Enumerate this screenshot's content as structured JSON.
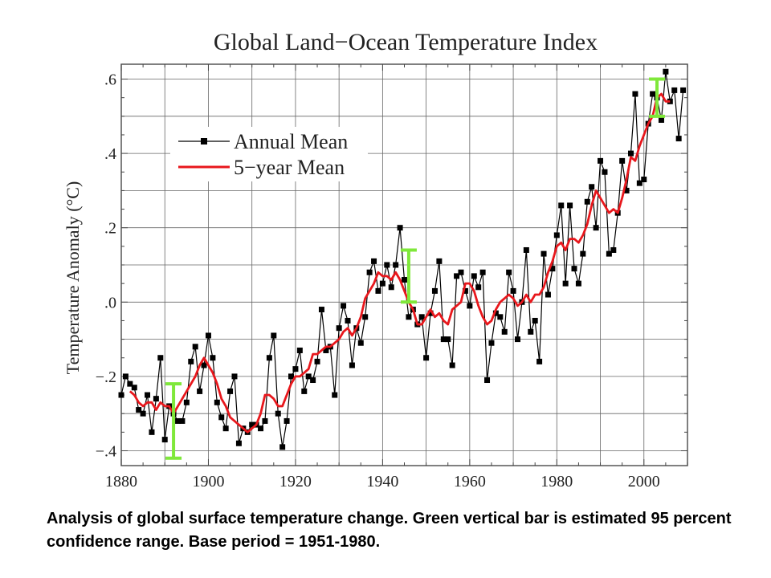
{
  "chart_data": {
    "type": "line",
    "title": "Global Land−Ocean Temperature Index",
    "ylabel": "Temperature Anomaly (°C)",
    "xlabel": "",
    "xlim": [
      1880,
      2010
    ],
    "ylim": [
      -0.44,
      0.64
    ],
    "x_ticks": [
      1880,
      1900,
      1920,
      1940,
      1960,
      1980,
      2000
    ],
    "x_tick_labels": [
      "1880",
      "1900",
      "1920",
      "1940",
      "1960",
      "1980",
      "2000"
    ],
    "y_ticks": [
      -0.4,
      -0.2,
      0.0,
      0.2,
      0.4,
      0.6
    ],
    "y_tick_labels": [
      "−.4",
      "−.2",
      ".0",
      ".2",
      ".4",
      ".6"
    ],
    "grid": true,
    "legend_position": "top-left",
    "x": [
      1880,
      1881,
      1882,
      1883,
      1884,
      1885,
      1886,
      1887,
      1888,
      1889,
      1890,
      1891,
      1892,
      1893,
      1894,
      1895,
      1896,
      1897,
      1898,
      1899,
      1900,
      1901,
      1902,
      1903,
      1904,
      1905,
      1906,
      1907,
      1908,
      1909,
      1910,
      1911,
      1912,
      1913,
      1914,
      1915,
      1916,
      1917,
      1918,
      1919,
      1920,
      1921,
      1922,
      1923,
      1924,
      1925,
      1926,
      1927,
      1928,
      1929,
      1930,
      1931,
      1932,
      1933,
      1934,
      1935,
      1936,
      1937,
      1938,
      1939,
      1940,
      1941,
      1942,
      1943,
      1944,
      1945,
      1946,
      1947,
      1948,
      1949,
      1950,
      1951,
      1952,
      1953,
      1954,
      1955,
      1956,
      1957,
      1958,
      1959,
      1960,
      1961,
      1962,
      1963,
      1964,
      1965,
      1966,
      1967,
      1968,
      1969,
      1970,
      1971,
      1972,
      1973,
      1974,
      1975,
      1976,
      1977,
      1978,
      1979,
      1980,
      1981,
      1982,
      1983,
      1984,
      1985,
      1986,
      1987,
      1988,
      1989,
      1990,
      1991,
      1992,
      1993,
      1994,
      1995,
      1996,
      1997,
      1998,
      1999,
      2000,
      2001,
      2002,
      2003,
      2004,
      2005,
      2006,
      2007,
      2008,
      2009
    ],
    "series": [
      {
        "name": "Annual Mean",
        "color": "#000000",
        "marker": "square",
        "values": [
          -0.25,
          -0.2,
          -0.22,
          -0.23,
          -0.29,
          -0.3,
          -0.25,
          -0.35,
          -0.26,
          -0.15,
          -0.37,
          -0.28,
          -0.3,
          -0.32,
          -0.32,
          -0.27,
          -0.16,
          -0.12,
          -0.24,
          -0.17,
          -0.09,
          -0.15,
          -0.27,
          -0.31,
          -0.34,
          -0.24,
          -0.2,
          -0.38,
          -0.34,
          -0.35,
          -0.33,
          -0.33,
          -0.34,
          -0.32,
          -0.15,
          -0.09,
          -0.3,
          -0.39,
          -0.32,
          -0.2,
          -0.18,
          -0.13,
          -0.24,
          -0.2,
          -0.21,
          -0.16,
          -0.02,
          -0.13,
          -0.12,
          -0.25,
          -0.07,
          -0.01,
          -0.05,
          -0.17,
          -0.07,
          -0.11,
          -0.04,
          0.08,
          0.11,
          0.03,
          0.05,
          0.1,
          0.04,
          0.1,
          0.2,
          0.06,
          -0.04,
          -0.02,
          -0.06,
          -0.04,
          -0.15,
          -0.03,
          0.03,
          0.11,
          -0.1,
          -0.1,
          -0.17,
          0.07,
          0.08,
          0.03,
          -0.01,
          0.07,
          0.04,
          0.08,
          -0.21,
          -0.11,
          -0.03,
          -0.04,
          -0.08,
          0.08,
          0.03,
          -0.1,
          0.0,
          0.14,
          -0.08,
          -0.05,
          -0.16,
          0.13,
          0.02,
          0.09,
          0.18,
          0.26,
          0.05,
          0.26,
          0.09,
          0.05,
          0.13,
          0.27,
          0.31,
          0.2,
          0.38,
          0.35,
          0.13,
          0.14,
          0.24,
          0.38,
          0.3,
          0.4,
          0.56,
          0.32,
          0.33,
          0.48,
          0.56,
          0.55,
          0.49,
          0.62,
          0.54,
          0.57,
          0.44,
          0.57
        ]
      },
      {
        "name": "5−year Mean",
        "color": "#e8171c",
        "values": [
          null,
          null,
          -0.24,
          -0.25,
          -0.27,
          -0.28,
          -0.27,
          -0.27,
          -0.29,
          -0.27,
          -0.28,
          -0.28,
          -0.3,
          -0.28,
          -0.26,
          -0.24,
          -0.22,
          -0.2,
          -0.17,
          -0.15,
          -0.17,
          -0.19,
          -0.22,
          -0.26,
          -0.28,
          -0.31,
          -0.32,
          -0.33,
          -0.34,
          -0.35,
          -0.34,
          -0.33,
          -0.3,
          -0.25,
          -0.25,
          -0.26,
          -0.28,
          -0.28,
          -0.25,
          -0.22,
          -0.2,
          -0.2,
          -0.19,
          -0.18,
          -0.14,
          -0.14,
          -0.13,
          -0.12,
          -0.12,
          -0.11,
          -0.1,
          -0.08,
          -0.07,
          -0.09,
          -0.07,
          -0.04,
          0.01,
          0.03,
          0.05,
          0.08,
          0.07,
          0.07,
          0.06,
          0.08,
          0.06,
          0.03,
          0.0,
          -0.02,
          -0.06,
          -0.06,
          -0.04,
          -0.02,
          -0.04,
          -0.03,
          -0.05,
          -0.06,
          -0.02,
          -0.01,
          0.0,
          0.05,
          0.05,
          0.03,
          -0.01,
          -0.04,
          -0.06,
          -0.05,
          -0.02,
          0.0,
          0.01,
          0.02,
          0.01,
          -0.01,
          0.0,
          0.02,
          0.0,
          0.02,
          0.02,
          0.04,
          0.08,
          0.11,
          0.15,
          0.16,
          0.14,
          0.17,
          0.17,
          0.16,
          0.18,
          0.21,
          0.26,
          0.3,
          0.28,
          0.26,
          0.24,
          0.25,
          0.24,
          0.28,
          0.33,
          0.39,
          0.38,
          0.42,
          0.45,
          0.48,
          0.5,
          0.55,
          0.56,
          0.54,
          0.54,
          null,
          null,
          null
        ]
      }
    ],
    "error_bars": [
      {
        "x": 1892,
        "low": -0.42,
        "high": -0.22
      },
      {
        "x": 1946,
        "low": 0.0,
        "high": 0.14
      },
      {
        "x": 2003,
        "low": 0.5,
        "high": 0.6
      }
    ],
    "error_bar_color": "#7fe83a"
  },
  "caption": "Analysis of global surface temperature change.  Green vertical bar is estimated 95 percent confidence range.  Base period = 1951-1980."
}
